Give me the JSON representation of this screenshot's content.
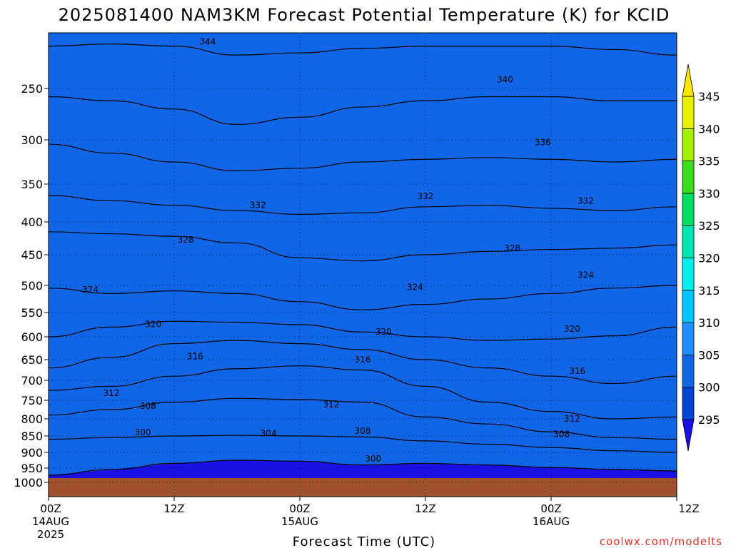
{
  "chart_data": {
    "type": "heatmap",
    "title": "2025081400 NAM3KM Forecast Potential Temperature (K) for KCID",
    "xlabel": "Forecast Time (UTC)",
    "ylabel": "",
    "credit": "coolwx.com/modelts",
    "y_scale": "pressure (log-like, inverted)",
    "yticks": [
      250,
      300,
      350,
      400,
      450,
      500,
      550,
      600,
      650,
      700,
      750,
      800,
      850,
      900,
      950,
      1000
    ],
    "ytick_labels": [
      "250",
      "300",
      "350",
      "400",
      "450",
      "500",
      "550",
      "600",
      "650",
      "700",
      "750",
      "800",
      "850",
      "900",
      "950",
      "1000"
    ],
    "ylim": [
      200,
      1025
    ],
    "xlim": [
      0,
      60
    ],
    "xticks": [
      {
        "hour": 0,
        "label": "00Z",
        "label2": "14AUG",
        "label3": "2025"
      },
      {
        "hour": 12,
        "label": "12Z",
        "label2": "",
        "label3": ""
      },
      {
        "hour": 24,
        "label": "00Z",
        "label2": "15AUG",
        "label3": ""
      },
      {
        "hour": 36,
        "label": "12Z",
        "label2": "",
        "label3": ""
      },
      {
        "hour": 48,
        "label": "00Z",
        "label2": "16AUG",
        "label3": ""
      },
      {
        "hour": 60,
        "label": "12Z",
        "label2": "",
        "label3": ""
      }
    ],
    "grid": true,
    "colorbar": {
      "levels": [
        295,
        300,
        305,
        310,
        315,
        320,
        325,
        330,
        335,
        340,
        345
      ],
      "labels": [
        "295",
        "300",
        "305",
        "310",
        "315",
        "320",
        "325",
        "330",
        "335",
        "340",
        "345"
      ],
      "colors": [
        "#1a10e6",
        "#0044d6",
        "#1066e6",
        "#1e90ff",
        "#00c8ff",
        "#00f0f0",
        "#00e6b0",
        "#00dc64",
        "#3cdc1e",
        "#a0f000",
        "#e6f000",
        "#ffe600"
      ],
      "extend": "both"
    },
    "ground_color": "#a0522d",
    "isentropes": [
      {
        "theta": 300,
        "p": [
          [
            0,
            975
          ],
          [
            6,
            955
          ],
          [
            12,
            935
          ],
          [
            18,
            925
          ],
          [
            24,
            928
          ],
          [
            30,
            940
          ],
          [
            36,
            935
          ],
          [
            42,
            940
          ],
          [
            48,
            948
          ],
          [
            54,
            955
          ],
          [
            60,
            960
          ]
        ]
      },
      {
        "theta": 304,
        "p": [
          [
            0,
            860
          ],
          [
            6,
            855
          ],
          [
            12,
            850
          ],
          [
            18,
            848
          ],
          [
            24,
            850
          ],
          [
            30,
            853
          ],
          [
            36,
            865
          ],
          [
            42,
            875
          ],
          [
            48,
            885
          ],
          [
            54,
            895
          ],
          [
            60,
            900
          ]
        ]
      },
      {
        "theta": 308,
        "p": [
          [
            0,
            790
          ],
          [
            6,
            775
          ],
          [
            12,
            755
          ],
          [
            18,
            745
          ],
          [
            24,
            748
          ],
          [
            30,
            755
          ],
          [
            36,
            795
          ],
          [
            42,
            815
          ],
          [
            48,
            838
          ],
          [
            54,
            855
          ],
          [
            60,
            860
          ]
        ]
      },
      {
        "theta": 312,
        "p": [
          [
            0,
            725
          ],
          [
            6,
            715
          ],
          [
            12,
            690
          ],
          [
            18,
            672
          ],
          [
            24,
            665
          ],
          [
            30,
            675
          ],
          [
            36,
            715
          ],
          [
            42,
            755
          ],
          [
            48,
            780
          ],
          [
            54,
            800
          ],
          [
            60,
            795
          ]
        ]
      },
      {
        "theta": 316,
        "p": [
          [
            0,
            670
          ],
          [
            6,
            645
          ],
          [
            12,
            615
          ],
          [
            18,
            608
          ],
          [
            24,
            615
          ],
          [
            30,
            628
          ],
          [
            36,
            650
          ],
          [
            42,
            670
          ],
          [
            48,
            690
          ],
          [
            54,
            708
          ],
          [
            60,
            690
          ]
        ]
      },
      {
        "theta": 320,
        "p": [
          [
            0,
            600
          ],
          [
            6,
            580
          ],
          [
            12,
            568
          ],
          [
            18,
            570
          ],
          [
            24,
            575
          ],
          [
            30,
            590
          ],
          [
            36,
            600
          ],
          [
            42,
            608
          ],
          [
            48,
            605
          ],
          [
            54,
            598
          ],
          [
            60,
            580
          ]
        ]
      },
      {
        "theta": 324,
        "p": [
          [
            0,
            505
          ],
          [
            6,
            515
          ],
          [
            12,
            510
          ],
          [
            18,
            515
          ],
          [
            24,
            530
          ],
          [
            30,
            545
          ],
          [
            36,
            535
          ],
          [
            42,
            525
          ],
          [
            48,
            515
          ],
          [
            54,
            505
          ],
          [
            60,
            500
          ]
        ]
      },
      {
        "theta": 328,
        "p": [
          [
            0,
            415
          ],
          [
            6,
            418
          ],
          [
            12,
            422
          ],
          [
            18,
            432
          ],
          [
            24,
            455
          ],
          [
            30,
            460
          ],
          [
            36,
            450
          ],
          [
            42,
            445
          ],
          [
            48,
            442
          ],
          [
            54,
            440
          ],
          [
            60,
            435
          ]
        ]
      },
      {
        "theta": 332,
        "p": [
          [
            0,
            365
          ],
          [
            6,
            372
          ],
          [
            12,
            378
          ],
          [
            18,
            385
          ],
          [
            24,
            390
          ],
          [
            30,
            388
          ],
          [
            36,
            380
          ],
          [
            42,
            378
          ],
          [
            48,
            382
          ],
          [
            54,
            385
          ],
          [
            60,
            380
          ]
        ]
      },
      {
        "theta": 336,
        "p": [
          [
            0,
            305
          ],
          [
            6,
            315
          ],
          [
            12,
            325
          ],
          [
            18,
            335
          ],
          [
            24,
            332
          ],
          [
            30,
            325
          ],
          [
            36,
            322
          ],
          [
            42,
            320
          ],
          [
            48,
            322
          ],
          [
            54,
            325
          ],
          [
            60,
            322
          ]
        ]
      },
      {
        "theta": 340,
        "p": [
          [
            0,
            258
          ],
          [
            6,
            262
          ],
          [
            12,
            270
          ],
          [
            18,
            285
          ],
          [
            24,
            278
          ],
          [
            30,
            268
          ],
          [
            36,
            262
          ],
          [
            42,
            258
          ],
          [
            48,
            258
          ],
          [
            54,
            262
          ],
          [
            60,
            262
          ]
        ]
      },
      {
        "theta": 344,
        "p": [
          [
            0,
            212
          ],
          [
            6,
            210
          ],
          [
            12,
            212
          ],
          [
            18,
            220
          ],
          [
            24,
            218
          ],
          [
            30,
            214
          ],
          [
            36,
            212
          ],
          [
            42,
            212
          ],
          [
            48,
            212
          ],
          [
            54,
            215
          ],
          [
            60,
            220
          ]
        ]
      }
    ],
    "contour_labels": [
      {
        "text": "344",
        "hour": 15.2,
        "p": 208
      },
      {
        "text": "340",
        "hour": 43.6,
        "p": 242
      },
      {
        "text": "336",
        "hour": 47.2,
        "p": 303
      },
      {
        "text": "332",
        "hour": 20.0,
        "p": 378
      },
      {
        "text": "332",
        "hour": 36.0,
        "p": 366
      },
      {
        "text": "332",
        "hour": 51.3,
        "p": 372
      },
      {
        "text": "328",
        "hour": 13.1,
        "p": 427
      },
      {
        "text": "328",
        "hour": 44.3,
        "p": 440
      },
      {
        "text": "324",
        "hour": 4.0,
        "p": 508
      },
      {
        "text": "324",
        "hour": 35.0,
        "p": 503
      },
      {
        "text": "324",
        "hour": 51.3,
        "p": 483
      },
      {
        "text": "320",
        "hour": 10.0,
        "p": 574
      },
      {
        "text": "320",
        "hour": 32.0,
        "p": 590
      },
      {
        "text": "320",
        "hour": 50.0,
        "p": 584
      },
      {
        "text": "316",
        "hour": 14.0,
        "p": 643
      },
      {
        "text": "316",
        "hour": 30.0,
        "p": 650
      },
      {
        "text": "316",
        "hour": 50.5,
        "p": 678
      },
      {
        "text": "312",
        "hour": 6.0,
        "p": 732
      },
      {
        "text": "312",
        "hour": 27.0,
        "p": 762
      },
      {
        "text": "312",
        "hour": 50.0,
        "p": 800
      },
      {
        "text": "308",
        "hour": 9.5,
        "p": 765
      },
      {
        "text": "308",
        "hour": 30.0,
        "p": 835
      },
      {
        "text": "308",
        "hour": 49.0,
        "p": 845
      },
      {
        "text": "304",
        "hour": 21.0,
        "p": 843
      },
      {
        "text": "300",
        "hour": 9.0,
        "p": 840
      },
      {
        "text": "300",
        "hour": 31.0,
        "p": 920
      }
    ]
  }
}
